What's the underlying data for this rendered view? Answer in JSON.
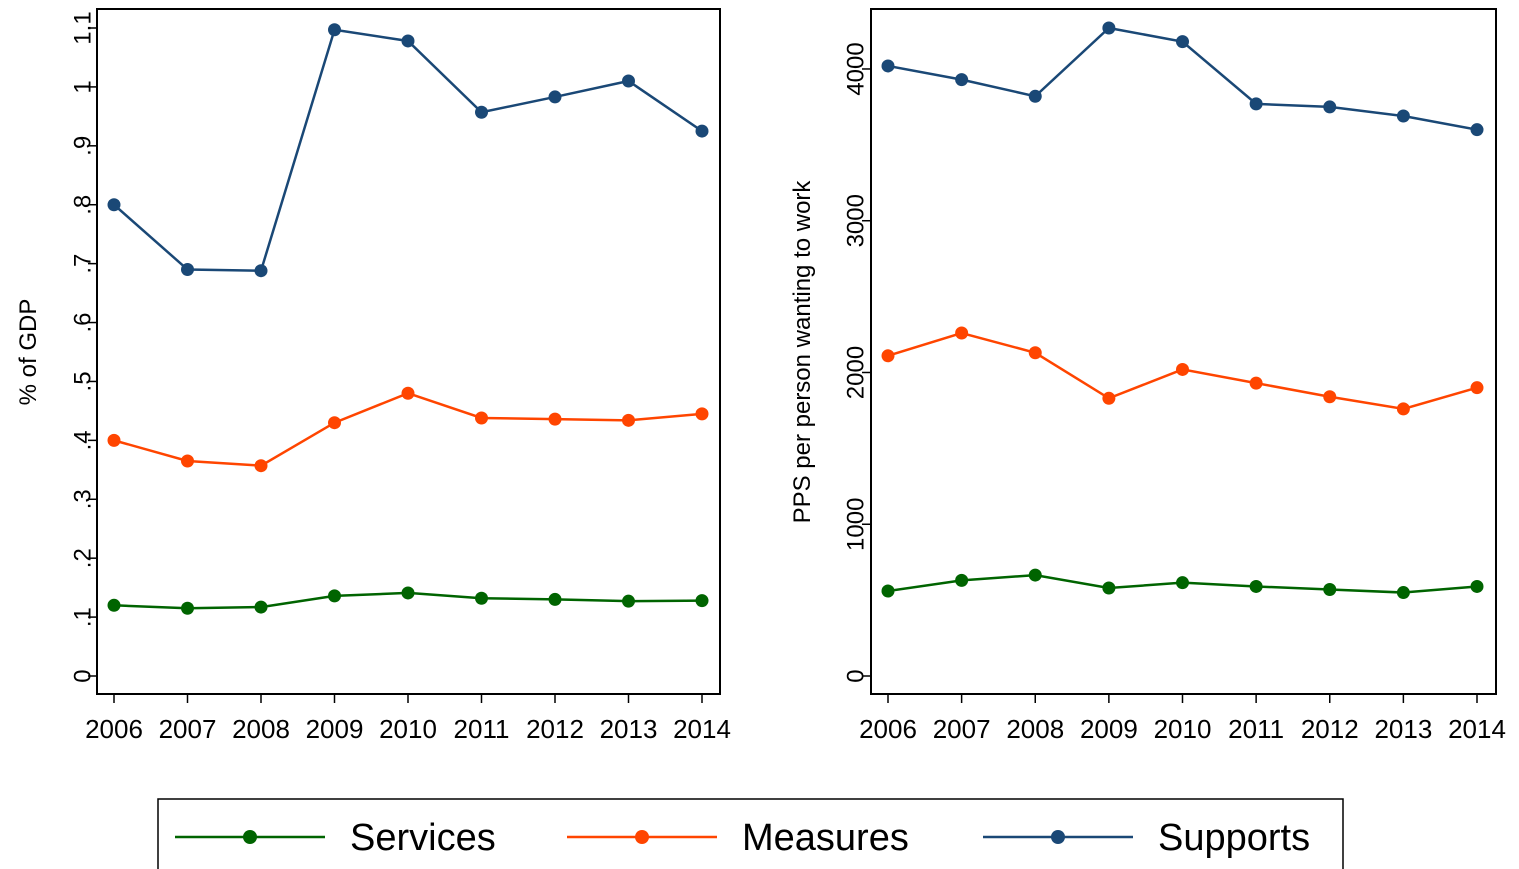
{
  "chart_data": [
    {
      "type": "line",
      "title": "",
      "xlabel": "",
      "ylabel": "% of GDP",
      "x": [
        "2006",
        "2007",
        "2008",
        "2009",
        "2010",
        "2011",
        "2012",
        "2013",
        "2014"
      ],
      "ylim": [
        0,
        1.1
      ],
      "yticks": [
        "0",
        ".1",
        ".2",
        ".3",
        ".4",
        ".5",
        ".6",
        ".7",
        ".8",
        ".9",
        "1",
        "1.1"
      ],
      "series": [
        {
          "name": "Services",
          "values": [
            0.12,
            0.115,
            0.117,
            0.136,
            0.141,
            0.132,
            0.13,
            0.127,
            0.128
          ]
        },
        {
          "name": "Measures",
          "values": [
            0.4,
            0.365,
            0.357,
            0.43,
            0.48,
            0.438,
            0.436,
            0.434,
            0.445
          ]
        },
        {
          "name": "Supports",
          "values": [
            0.8,
            0.69,
            0.688,
            1.097,
            1.078,
            0.957,
            0.983,
            1.01,
            0.925
          ]
        }
      ]
    },
    {
      "type": "line",
      "title": "",
      "xlabel": "",
      "ylabel": "PPS per person wanting to work",
      "x": [
        "2006",
        "2007",
        "2008",
        "2009",
        "2010",
        "2011",
        "2012",
        "2013",
        "2014"
      ],
      "ylim": [
        0,
        4300
      ],
      "yticks": [
        "0",
        "1000",
        "2000",
        "3000",
        "4000"
      ],
      "series": [
        {
          "name": "Services",
          "values": [
            560,
            630,
            665,
            580,
            615,
            590,
            570,
            550,
            590
          ]
        },
        {
          "name": "Measures",
          "values": [
            2110,
            2260,
            2130,
            1830,
            2020,
            1930,
            1840,
            1760,
            1900
          ]
        },
        {
          "name": "Supports",
          "values": [
            4020,
            3930,
            3820,
            4270,
            4180,
            3770,
            3750,
            3690,
            3600
          ]
        }
      ]
    }
  ],
  "legend": {
    "items": [
      {
        "label": "Services",
        "color": "#006400"
      },
      {
        "label": "Measures",
        "color": "#ff4500"
      },
      {
        "label": "Supports",
        "color": "#1a4876"
      }
    ]
  }
}
